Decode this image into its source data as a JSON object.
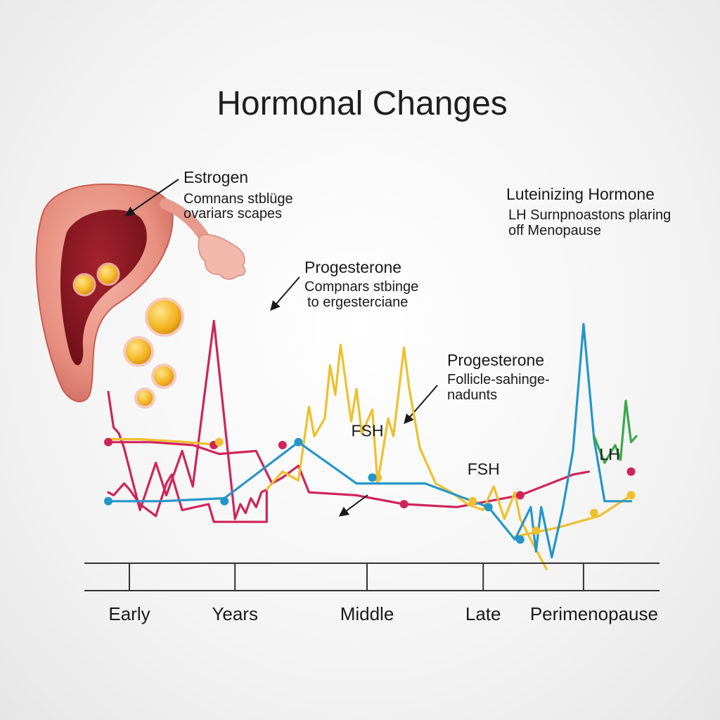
{
  "chart_data": {
    "type": "line",
    "title": "Hormonal Changes",
    "xlabel": "",
    "ylabel": "",
    "grid": false,
    "x_range": [
      0,
      100
    ],
    "y_range": [
      0,
      100
    ],
    "categories": [
      "Early",
      "Years",
      "Middle",
      "Late",
      "Perimenopause"
    ],
    "category_x": [
      4,
      24,
      49,
      71,
      90
    ],
    "colors": {
      "estrogen": "#cf2459",
      "progesterone": "#efbf2c",
      "fsh": "#2596c8",
      "lh": "#3aa845",
      "axis": "#333333",
      "arrow": "#1a1a1a"
    },
    "series": [
      {
        "key": "estrogen",
        "color": "#cf2459",
        "points": [
          [
            0,
            53
          ],
          [
            1,
            41
          ],
          [
            2,
            39
          ],
          [
            3,
            34
          ],
          [
            6,
            13
          ],
          [
            9,
            29
          ],
          [
            11,
            18
          ],
          [
            14,
            33
          ],
          [
            16,
            21
          ],
          [
            20,
            77
          ],
          [
            24,
            10
          ],
          [
            25,
            15
          ],
          [
            26,
            12
          ],
          [
            27,
            17
          ],
          [
            28,
            14
          ],
          [
            29,
            19
          ],
          [
            30,
            20
          ],
          [
            30,
            9
          ],
          [
            20,
            9
          ],
          [
            19,
            15
          ],
          [
            14,
            13
          ],
          [
            12,
            25
          ],
          [
            11,
            22
          ],
          [
            9,
            11
          ],
          [
            6,
            15
          ],
          [
            4,
            20
          ],
          [
            3,
            22
          ],
          [
            1,
            18
          ],
          [
            0,
            19
          ]
        ]
      },
      {
        "key": "estrogen_base",
        "color": "#cf2459",
        "points": [
          [
            0,
            36
          ],
          [
            8,
            36
          ],
          [
            16,
            35
          ],
          [
            21,
            32
          ],
          [
            28,
            33
          ],
          [
            31,
            22
          ],
          [
            33,
            24
          ],
          [
            36,
            28
          ],
          [
            38,
            19
          ],
          [
            47,
            18
          ],
          [
            56,
            15
          ],
          [
            66,
            14
          ],
          [
            78,
            18
          ],
          [
            88,
            25
          ],
          [
            91,
            26
          ]
        ]
      },
      {
        "key": "progesterone",
        "color": "#efbf2c",
        "points": [
          [
            30,
            20
          ],
          [
            33,
            26
          ],
          [
            36,
            23
          ],
          [
            38,
            48
          ],
          [
            39,
            38
          ],
          [
            41,
            44
          ],
          [
            42,
            62
          ],
          [
            43,
            52
          ],
          [
            44,
            69
          ],
          [
            46,
            43
          ],
          [
            47,
            54
          ],
          [
            48,
            39
          ],
          [
            50,
            47
          ],
          [
            51,
            22
          ],
          [
            53,
            44
          ],
          [
            54,
            38
          ],
          [
            56,
            68
          ],
          [
            57,
            54
          ],
          [
            59,
            34
          ],
          [
            62,
            22
          ],
          [
            65,
            19
          ],
          [
            68,
            15
          ],
          [
            71,
            13
          ],
          [
            73,
            21
          ],
          [
            75,
            10
          ],
          [
            77,
            19
          ],
          [
            78,
            10
          ],
          [
            80,
            3
          ],
          [
            83,
            -7
          ]
        ]
      },
      {
        "key": "progesterone_base",
        "color": "#efbf2c",
        "points": [
          [
            0,
            37
          ],
          [
            6,
            37
          ],
          [
            15,
            36
          ],
          [
            21,
            35
          ]
        ]
      },
      {
        "key": "progesterone_late",
        "color": "#efbf2c",
        "points": [
          [
            77,
            4
          ],
          [
            85,
            7
          ],
          [
            93,
            11
          ],
          [
            99,
            18
          ]
        ]
      },
      {
        "key": "fsh",
        "color": "#2596c8",
        "points": [
          [
            0,
            16
          ],
          [
            10,
            16
          ],
          [
            22,
            17
          ],
          [
            36,
            36
          ],
          [
            47,
            22
          ],
          [
            60,
            22
          ],
          [
            72,
            14
          ],
          [
            77,
            3
          ],
          [
            80,
            14
          ],
          [
            81,
            -1
          ],
          [
            82,
            14
          ],
          [
            84,
            -3
          ],
          [
            86,
            13
          ],
          [
            88,
            33
          ],
          [
            90,
            76
          ],
          [
            92,
            37
          ],
          [
            94,
            16
          ],
          [
            96,
            16
          ],
          [
            99,
            16
          ]
        ]
      },
      {
        "key": "lh",
        "color": "#3aa845",
        "points": [
          [
            92,
            38
          ],
          [
            94,
            29
          ],
          [
            96,
            35
          ],
          [
            97,
            30
          ],
          [
            98,
            50
          ],
          [
            99,
            36
          ],
          [
            100,
            38
          ]
        ]
      }
    ],
    "markers": [
      {
        "series": "estrogen",
        "x": 0,
        "y": 36
      },
      {
        "series": "estrogen",
        "x": 20,
        "y": 35
      },
      {
        "series": "estrogen",
        "x": 33,
        "y": 35
      },
      {
        "series": "estrogen",
        "x": 56,
        "y": 15
      },
      {
        "series": "estrogen",
        "x": 78,
        "y": 18
      },
      {
        "series": "estrogen",
        "x": 99,
        "y": 26
      },
      {
        "series": "progesterone",
        "x": 21,
        "y": 36
      },
      {
        "series": "progesterone",
        "x": 51,
        "y": 24
      },
      {
        "series": "progesterone",
        "x": 69,
        "y": 16
      },
      {
        "series": "progesterone",
        "x": 81,
        "y": 6
      },
      {
        "series": "progesterone",
        "x": 92,
        "y": 12
      },
      {
        "series": "progesterone",
        "x": 99,
        "y": 18
      },
      {
        "series": "fsh",
        "x": 0,
        "y": 16
      },
      {
        "series": "fsh",
        "x": 22,
        "y": 16
      },
      {
        "series": "fsh",
        "x": 36,
        "y": 36
      },
      {
        "series": "fsh",
        "x": 50,
        "y": 24
      },
      {
        "series": "fsh",
        "x": 72,
        "y": 14
      },
      {
        "series": "fsh",
        "x": 78,
        "y": 3
      }
    ],
    "series_labels": [
      {
        "text": "FSH",
        "x": 46,
        "y": 38
      },
      {
        "text": "FSH",
        "x": 68,
        "y": 25
      },
      {
        "text": "LH",
        "x": 93,
        "y": 30
      }
    ],
    "annotations": [
      {
        "key": "estrogen",
        "heading": "Estrogen",
        "lines": [
          "Comnans stblüge",
          "ovariars scapes"
        ]
      },
      {
        "key": "progesterone1",
        "heading": "Progesterone",
        "lines": [
          "Compnars stbinge",
          "to ergesterciane"
        ]
      },
      {
        "key": "progesterone2",
        "heading": "Progesterone",
        "lines": [
          "Follicle-sahinge-",
          "nadunts"
        ]
      },
      {
        "key": "lh",
        "heading": "Luteinizing Hormone",
        "lines": [
          "LH Surnpnoastons plaring",
          "off Menopause"
        ]
      }
    ],
    "ovary_icon": "uterus-ovary-illustration",
    "follicle_icon": "follicle-bubbles"
  }
}
